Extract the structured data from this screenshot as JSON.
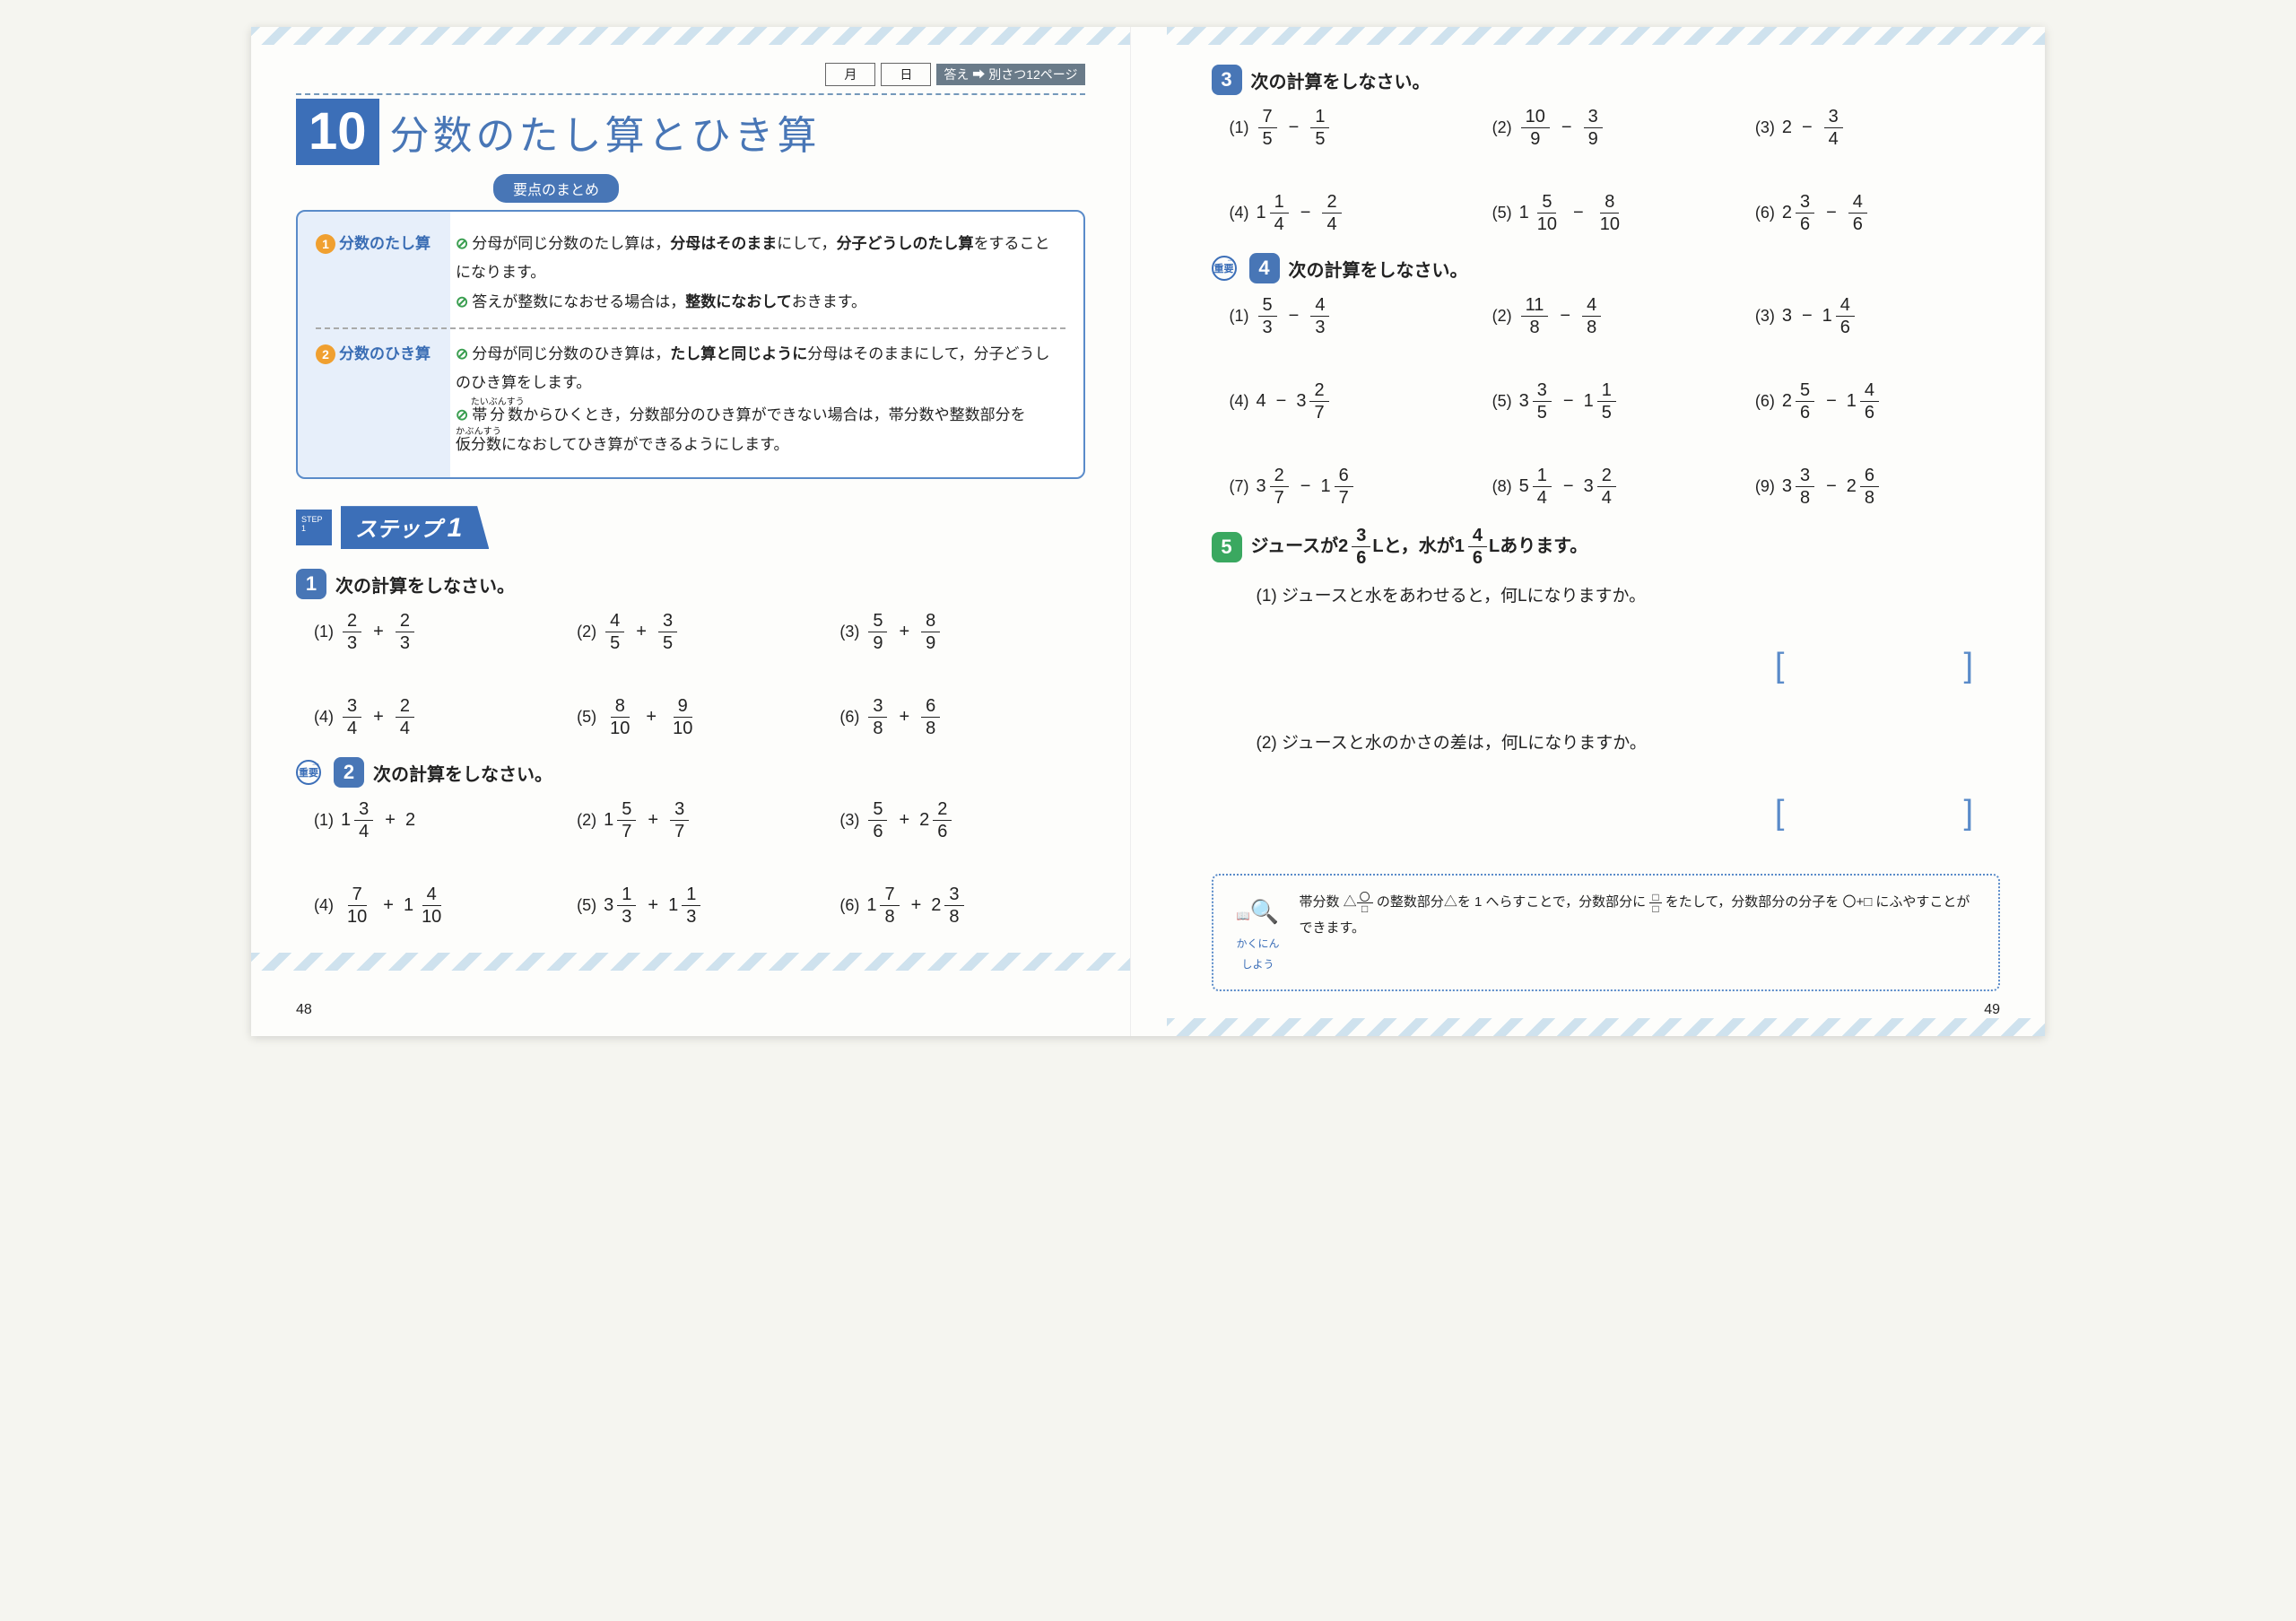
{
  "header": {
    "month": "月",
    "day": "日",
    "answer_label": "答え",
    "answer_ref": "別さつ12ページ"
  },
  "chapter": {
    "number": "10",
    "title": "分数のたし算とひき算"
  },
  "summary": {
    "label": "要点のまとめ",
    "rows": [
      {
        "n": "1",
        "label": "分数のたし算",
        "lines": [
          "分母が同じ分数のたし算は，<b class='em'>分母はそのまま</b>にして，<b class='em'>分子どうしのたし算</b>をすることになります。",
          "答えが整数になおせる場合は，<b class='em'>整数になおして</b>おきます。"
        ]
      },
      {
        "n": "2",
        "label": "分数のひき算",
        "lines": [
          "分母が同じ分数のひき算は，<b class='em'>たし算と同じように</b>分母はそのままにして，分子どうしのひき算をします。",
          "<ruby>帯分数<rt>たいぶんすう</rt></ruby>からひくとき，分数部分のひき算ができない場合は，帯分数や整数部分を<ruby>仮分数<rt>かぶんすう</rt></ruby>になおしてひき算ができるようにします。"
        ]
      }
    ]
  },
  "step": {
    "label": "ステップ",
    "num": "1"
  },
  "questions": {
    "q1": {
      "num": "1",
      "prompt": "次の計算をしなさい。",
      "items": [
        {
          "p": "(1)",
          "a": {
            "n": "2",
            "d": "3"
          },
          "op": "+",
          "b": {
            "n": "2",
            "d": "3"
          }
        },
        {
          "p": "(2)",
          "a": {
            "n": "4",
            "d": "5"
          },
          "op": "+",
          "b": {
            "n": "3",
            "d": "5"
          }
        },
        {
          "p": "(3)",
          "a": {
            "n": "5",
            "d": "9"
          },
          "op": "+",
          "b": {
            "n": "8",
            "d": "9"
          }
        },
        {
          "p": "(4)",
          "a": {
            "n": "3",
            "d": "4"
          },
          "op": "+",
          "b": {
            "n": "2",
            "d": "4"
          }
        },
        {
          "p": "(5)",
          "a": {
            "n": "8",
            "d": "10"
          },
          "op": "+",
          "b": {
            "n": "9",
            "d": "10"
          }
        },
        {
          "p": "(6)",
          "a": {
            "n": "3",
            "d": "8"
          },
          "op": "+",
          "b": {
            "n": "6",
            "d": "8"
          }
        }
      ]
    },
    "q2": {
      "num": "2",
      "juuyou": true,
      "prompt": "次の計算をしなさい。",
      "items": [
        {
          "p": "(1)",
          "a": {
            "w": "1",
            "n": "3",
            "d": "4"
          },
          "op": "+",
          "b": {
            "int": "2"
          }
        },
        {
          "p": "(2)",
          "a": {
            "w": "1",
            "n": "5",
            "d": "7"
          },
          "op": "+",
          "b": {
            "n": "3",
            "d": "7"
          }
        },
        {
          "p": "(3)",
          "a": {
            "n": "5",
            "d": "6"
          },
          "op": "+",
          "b": {
            "w": "2",
            "n": "2",
            "d": "6"
          }
        },
        {
          "p": "(4)",
          "a": {
            "n": "7",
            "d": "10"
          },
          "op": "+",
          "b": {
            "w": "1",
            "n": "4",
            "d": "10"
          }
        },
        {
          "p": "(5)",
          "a": {
            "w": "3",
            "n": "1",
            "d": "3"
          },
          "op": "+",
          "b": {
            "w": "1",
            "n": "1",
            "d": "3"
          }
        },
        {
          "p": "(6)",
          "a": {
            "w": "1",
            "n": "7",
            "d": "8"
          },
          "op": "+",
          "b": {
            "w": "2",
            "n": "3",
            "d": "8"
          }
        }
      ]
    },
    "q3": {
      "num": "3",
      "prompt": "次の計算をしなさい。",
      "items": [
        {
          "p": "(1)",
          "a": {
            "n": "7",
            "d": "5"
          },
          "op": "−",
          "b": {
            "n": "1",
            "d": "5"
          }
        },
        {
          "p": "(2)",
          "a": {
            "n": "10",
            "d": "9"
          },
          "op": "−",
          "b": {
            "n": "3",
            "d": "9"
          }
        },
        {
          "p": "(3)",
          "a": {
            "int": "2"
          },
          "op": "−",
          "b": {
            "n": "3",
            "d": "4"
          }
        },
        {
          "p": "(4)",
          "a": {
            "w": "1",
            "n": "1",
            "d": "4"
          },
          "op": "−",
          "b": {
            "n": "2",
            "d": "4"
          }
        },
        {
          "p": "(5)",
          "a": {
            "w": "1",
            "n": "5",
            "d": "10"
          },
          "op": "−",
          "b": {
            "n": "8",
            "d": "10"
          }
        },
        {
          "p": "(6)",
          "a": {
            "w": "2",
            "n": "3",
            "d": "6"
          },
          "op": "−",
          "b": {
            "n": "4",
            "d": "6"
          }
        }
      ]
    },
    "q4": {
      "num": "4",
      "juuyou": true,
      "prompt": "次の計算をしなさい。",
      "items": [
        {
          "p": "(1)",
          "a": {
            "n": "5",
            "d": "3"
          },
          "op": "−",
          "b": {
            "n": "4",
            "d": "3"
          }
        },
        {
          "p": "(2)",
          "a": {
            "n": "11",
            "d": "8"
          },
          "op": "−",
          "b": {
            "n": "4",
            "d": "8"
          }
        },
        {
          "p": "(3)",
          "a": {
            "int": "3"
          },
          "op": "−",
          "b": {
            "w": "1",
            "n": "4",
            "d": "6"
          }
        },
        {
          "p": "(4)",
          "a": {
            "int": "4"
          },
          "op": "−",
          "b": {
            "w": "3",
            "n": "2",
            "d": "7"
          }
        },
        {
          "p": "(5)",
          "a": {
            "w": "3",
            "n": "3",
            "d": "5"
          },
          "op": "−",
          "b": {
            "w": "1",
            "n": "1",
            "d": "5"
          }
        },
        {
          "p": "(6)",
          "a": {
            "w": "2",
            "n": "5",
            "d": "6"
          },
          "op": "−",
          "b": {
            "w": "1",
            "n": "4",
            "d": "6"
          }
        },
        {
          "p": "(7)",
          "a": {
            "w": "3",
            "n": "2",
            "d": "7"
          },
          "op": "−",
          "b": {
            "w": "1",
            "n": "6",
            "d": "7"
          }
        },
        {
          "p": "(8)",
          "a": {
            "w": "5",
            "n": "1",
            "d": "4"
          },
          "op": "−",
          "b": {
            "w": "3",
            "n": "2",
            "d": "4"
          }
        },
        {
          "p": "(9)",
          "a": {
            "w": "3",
            "n": "3",
            "d": "8"
          },
          "op": "−",
          "b": {
            "w": "2",
            "n": "6",
            "d": "8"
          }
        }
      ]
    },
    "q5": {
      "num": "5",
      "intro_parts": {
        "pre": "ジュースが",
        "j": {
          "w": "2",
          "n": "3",
          "d": "6"
        },
        "mid": "Lと，水が",
        "w": {
          "w": "1",
          "n": "4",
          "d": "6"
        },
        "post": "Lあります。"
      },
      "subs": [
        {
          "p": "(1)",
          "text": "ジュースと水をあわせると，何Lになりますか。"
        },
        {
          "p": "(2)",
          "text": "ジュースと水のかさの差は，何Lになりますか。"
        }
      ]
    }
  },
  "kakunin": {
    "icon_label": "かくにん\nしよう",
    "text_a": "帯分数 △",
    "text_b": " の整数部分△を 1 へらすことで，分数部分に ",
    "text_c": " をたして，分数部分の分子を 〇+□ にふやすことができます。"
  },
  "page_left": "48",
  "page_right": "49",
  "juuyou_text": "重要"
}
